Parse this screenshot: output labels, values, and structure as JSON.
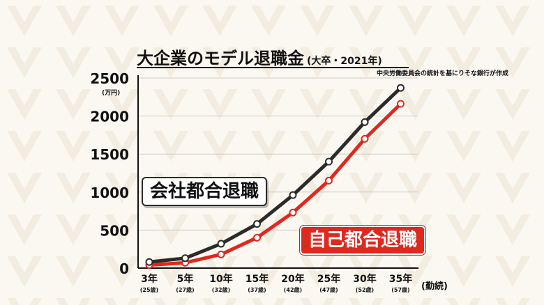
{
  "title": "大企業のモデル退職金",
  "subtitle": "(大卒・2021年)",
  "source": "中央労働委員会の統計を基にりそな銀行が作成",
  "colors": {
    "company_line": "#2b2b2b",
    "self_line": "#e0281e",
    "badge_self_bg": "#e0281e"
  },
  "chart_data": {
    "type": "line",
    "ylabel": "(万円)",
    "xlabel": "(勤続)",
    "ylim": [
      0,
      2500
    ],
    "yticks": [
      "0",
      "500",
      "1000",
      "1500",
      "2000",
      "2500"
    ],
    "categories": [
      "3年",
      "5年",
      "10年",
      "15年",
      "20年",
      "25年",
      "30年",
      "35年"
    ],
    "category_sublabels": [
      "(25歳)",
      "(27歳)",
      "(32歳)",
      "(37歳)",
      "(42歳)",
      "(47歳)",
      "(52歳)",
      "(57歳)"
    ],
    "grid": true,
    "series": [
      {
        "name": "会社都合退職",
        "values": [
          80,
          130,
          320,
          580,
          960,
          1400,
          1920,
          2370
        ]
      },
      {
        "name": "自己都合退職",
        "values": [
          40,
          70,
          180,
          400,
          730,
          1150,
          1700,
          2160
        ]
      }
    ]
  }
}
